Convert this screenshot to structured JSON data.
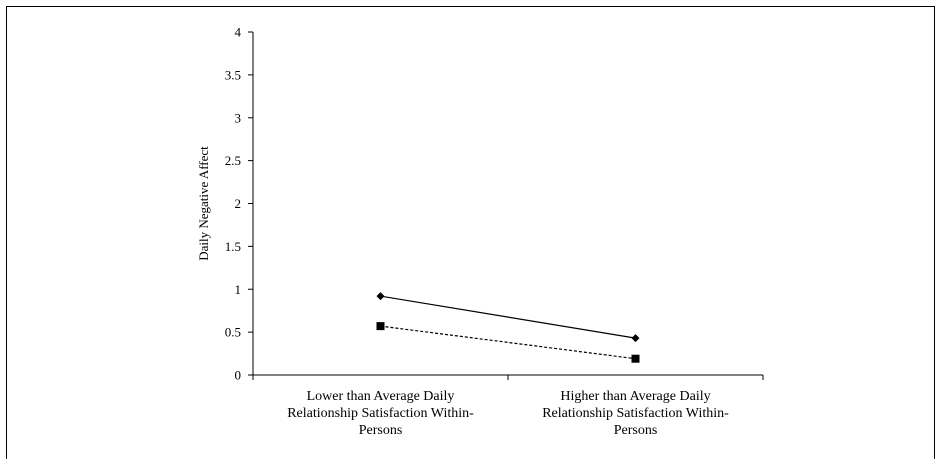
{
  "chart_data": {
    "type": "line",
    "title": "",
    "xlabel": "",
    "ylabel": "Daily Negative Affect",
    "ylim": [
      0,
      4
    ],
    "yticks": [
      "0",
      "0.5",
      "1",
      "1.5",
      "2",
      "2.5",
      "3",
      "3.5",
      "4"
    ],
    "categories": [
      [
        "Lower than Average Daily",
        "Relationship Satisfaction Within-",
        "Persons"
      ],
      [
        "Higher than Average Daily",
        "Relationship Satisfaction Within-",
        "Persons"
      ]
    ],
    "series": [
      {
        "values": [
          0.92,
          0.43
        ],
        "line": "solid",
        "marker": "diamond",
        "color": "#000000"
      },
      {
        "values": [
          0.57,
          0.19
        ],
        "line": "dashed",
        "marker": "square",
        "color": "#000000"
      }
    ],
    "grid": false,
    "legend": "none"
  }
}
